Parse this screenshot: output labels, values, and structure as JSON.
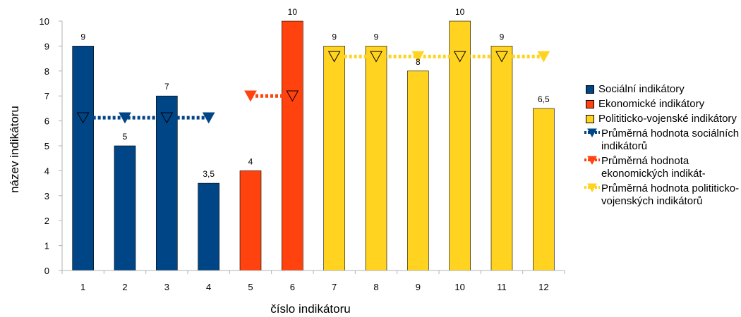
{
  "chart_data": {
    "type": "bar",
    "xlabel": "číslo indikátoru",
    "ylabel": "název indikátoru",
    "ylim": [
      0,
      10
    ],
    "yticks": [
      "0",
      "1",
      "2",
      "3",
      "4",
      "5",
      "6",
      "7",
      "8",
      "9",
      "10"
    ],
    "categories": [
      "1",
      "2",
      "3",
      "4",
      "5",
      "6",
      "7",
      "8",
      "9",
      "10",
      "11",
      "12"
    ],
    "values": [
      9,
      5,
      7,
      3.5,
      4,
      10,
      9,
      9,
      8,
      10,
      9,
      6.5
    ],
    "value_labels": [
      "9",
      "5",
      "7",
      "3,5",
      "4",
      "10",
      "9",
      "9",
      "8",
      "10",
      "9",
      "6,5"
    ],
    "bar_groups": [
      0,
      0,
      0,
      0,
      1,
      1,
      2,
      2,
      2,
      2,
      2,
      2
    ],
    "bar_series": [
      {
        "name": "Sociální indikátory",
        "color": "#004586"
      },
      {
        "name": "Ekonomické indikátory",
        "color": "#ff420e"
      },
      {
        "name": "Polititicko-vojenské indikátory",
        "color": "#ffd320"
      }
    ],
    "average_series": [
      {
        "name": "Průměrná hodnota sociálních indikátorů",
        "color": "#004586",
        "value": 6.125,
        "from": "1",
        "to": "4"
      },
      {
        "name": "Průměrná hodnota ekonomických indikát-",
        "color": "#ff420e",
        "value": 7,
        "from": "5",
        "to": "6"
      },
      {
        "name": "Průměrná hodnota polititicko-vojenských indikátorů",
        "color": "#ffd320",
        "value": 8.58,
        "from": "7",
        "to": "12"
      }
    ],
    "legend_position": "right",
    "grid": false
  },
  "legend": [
    {
      "label": "Sociální indikátory",
      "kind": "bar",
      "color": "#004586"
    },
    {
      "label": "Ekonomické indikátory",
      "kind": "bar",
      "color": "#ff420e"
    },
    {
      "label": "Polititicko-vojenské indikátory",
      "kind": "bar",
      "color": "#ffd320"
    },
    {
      "label": "Průměrná hodnota sociálních indikátorů",
      "kind": "line",
      "color": "#004586"
    },
    {
      "label": "Průměrná hodnota ekonomických indikát-",
      "kind": "line",
      "color": "#ff420e"
    },
    {
      "label": "Průměrná hodnota polititicko-vojenských indikátorů",
      "kind": "line",
      "color": "#ffd320"
    }
  ]
}
